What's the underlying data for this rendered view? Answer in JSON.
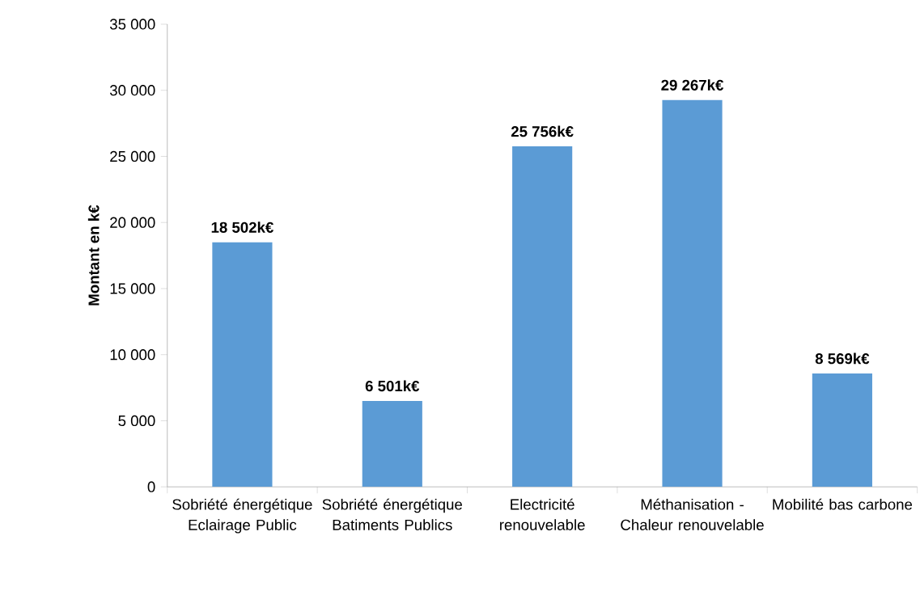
{
  "chart_data": {
    "type": "bar",
    "ylabel": "Montant en k€",
    "color": "#5b9bd5",
    "categories": [
      "Sobriété énergétique Eclairage Public",
      "Sobriété énergétique Batiments Publics",
      "Electricité renouvelable",
      "Méthanisation - Chaleur renouvelable",
      "Mobilité bas carbone"
    ],
    "values": [
      18502,
      6501,
      25756,
      29267,
      8569
    ],
    "value_labels": [
      "18 502k€",
      "6 501k€",
      "25 756k€",
      "29 267k€",
      "8 569k€"
    ],
    "ylim": [
      0,
      35000
    ],
    "yticks": [
      0,
      {
        "value": 5000,
        "label": "5 000"
      },
      {
        "value": 10000,
        "label": "10 000"
      },
      {
        "value": 15000,
        "label": "15 000"
      },
      {
        "value": 20000,
        "label": "20 000"
      },
      {
        "value": 25000,
        "label": "25 000"
      },
      {
        "value": 30000,
        "label": "30 000"
      },
      {
        "value": 35000,
        "label": "35 000"
      }
    ]
  }
}
